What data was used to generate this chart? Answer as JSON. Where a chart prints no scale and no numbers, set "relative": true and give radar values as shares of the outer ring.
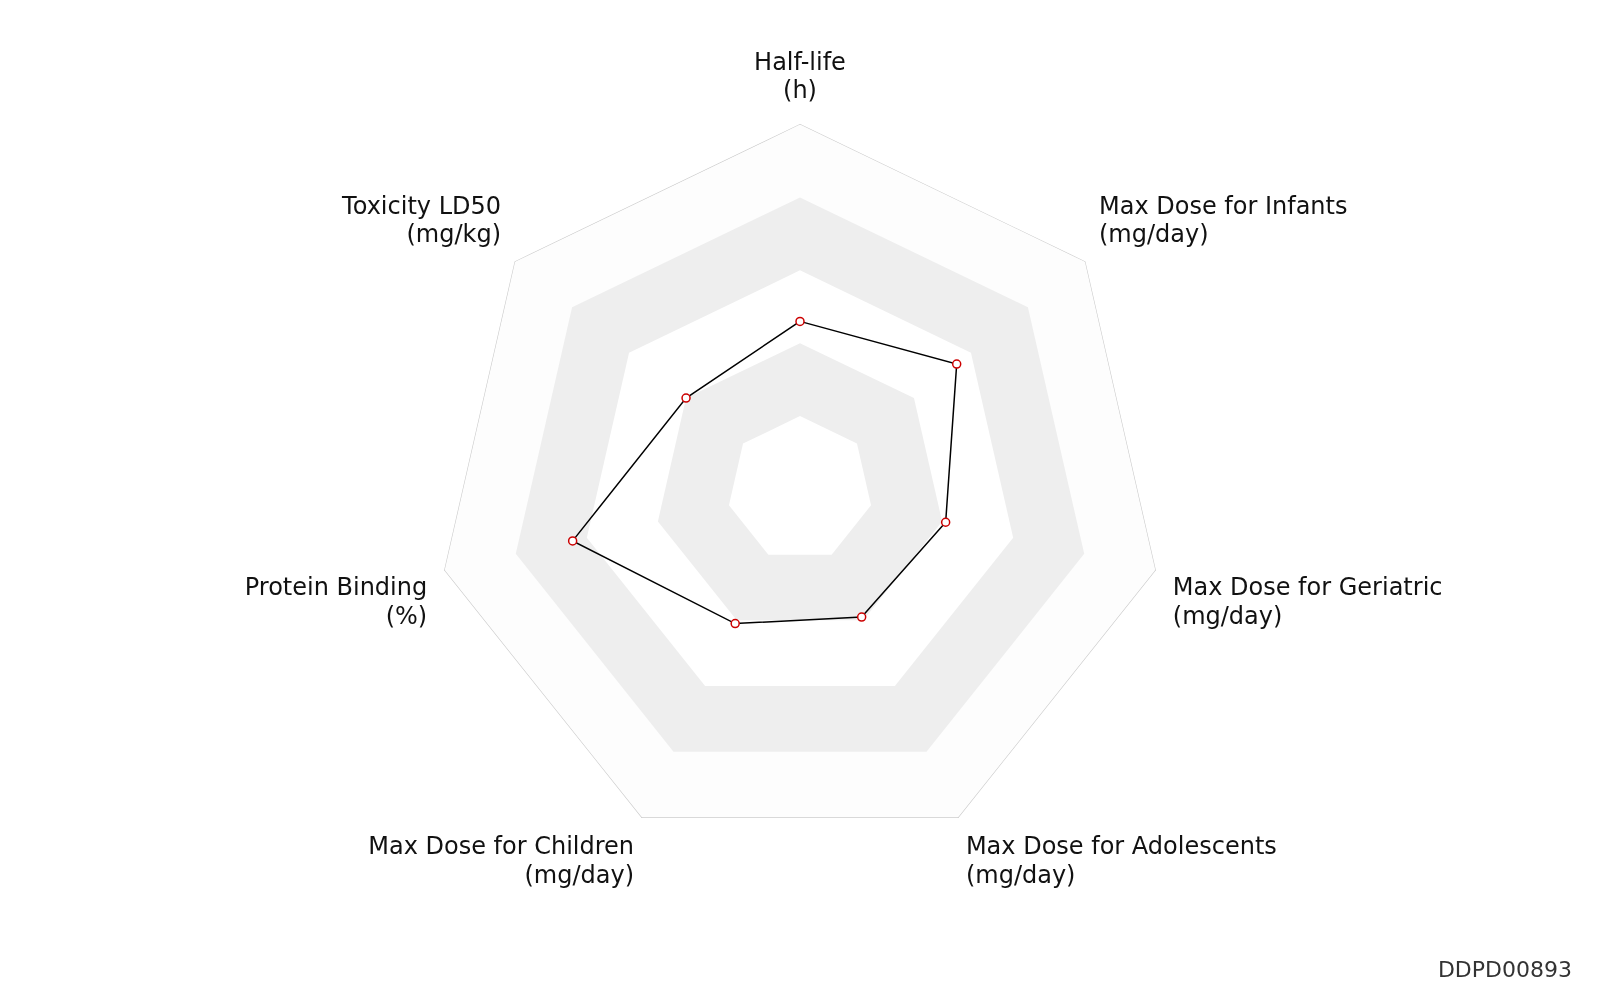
{
  "chart_data": {
    "type": "radar",
    "relative": true,
    "categories": [
      "Half-life\n(h)",
      "Max Dose for Infants\n(mg/day)",
      "Max Dose for Geriatric\n(mg/day)",
      "Max Dose for Adolescents\n(mg/day)",
      "Max Dose for Children\n(mg/day)",
      "Protein Binding\n(%)",
      "Toxicity LD50\n(mg/kg)"
    ],
    "series": [
      {
        "color": "#000000",
        "values": [
          0.46,
          0.55,
          0.41,
          0.39,
          0.41,
          0.64,
          0.4
        ]
      }
    ],
    "marker": "circle",
    "grid": true,
    "legend": false,
    "annotations": [
      "DDPD00893"
    ]
  }
}
